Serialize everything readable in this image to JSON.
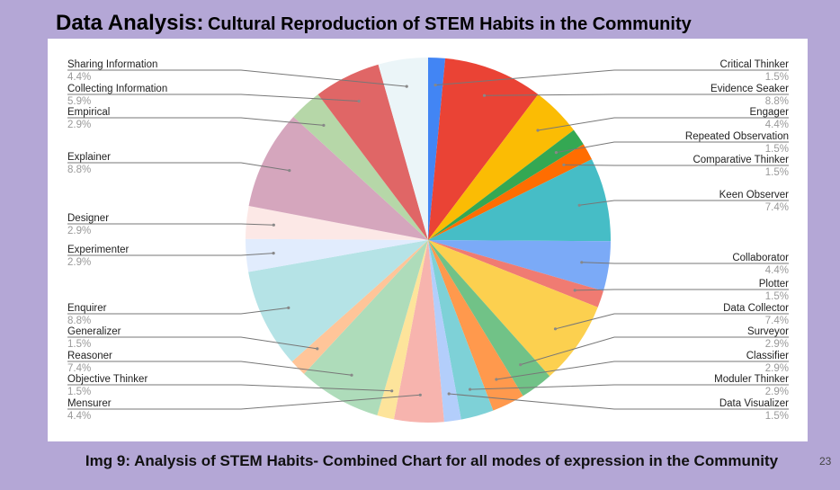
{
  "slide": {
    "title_prefix": "Data Analysis:",
    "title_rest": "Cultural Reproduction of STEM Habits in the Community",
    "caption": "Img 9: Analysis of STEM Habits- Combined Chart for all modes of expression in the Community",
    "page_number": "23"
  },
  "chart_data": {
    "type": "pie",
    "title": "",
    "slices": [
      {
        "label": "Critical Thinker",
        "value": 1.5,
        "display": "1.5%",
        "color": "#4285f4"
      },
      {
        "label": "Evidence Seaker",
        "value": 8.8,
        "display": "8.8%",
        "color": "#ea4335"
      },
      {
        "label": "Engager",
        "value": 4.4,
        "display": "4.4%",
        "color": "#fbbc04"
      },
      {
        "label": "Repeated Observation",
        "value": 1.5,
        "display": "1.5%",
        "color": "#34a853"
      },
      {
        "label": "Comparative Thinker",
        "value": 1.5,
        "display": "1.5%",
        "color": "#ff6d01"
      },
      {
        "label": "Keen Observer",
        "value": 7.4,
        "display": "7.4%",
        "color": "#46bdc6"
      },
      {
        "label": "Collaborator",
        "value": 4.4,
        "display": "4.4%",
        "color": "#7baaf7"
      },
      {
        "label": "Plotter",
        "value": 1.5,
        "display": "1.5%",
        "color": "#f07b72"
      },
      {
        "label": "Data Collector",
        "value": 7.4,
        "display": "7.4%",
        "color": "#fcd04f"
      },
      {
        "label": "Surveyor",
        "value": 2.9,
        "display": "2.9%",
        "color": "#71c287"
      },
      {
        "label": "Classifier",
        "value": 2.9,
        "display": "2.9%",
        "color": "#ff994d"
      },
      {
        "label": "Moduler Thinker",
        "value": 2.9,
        "display": "2.9%",
        "color": "#7ed1d7"
      },
      {
        "label": "Data Visualizer",
        "value": 1.5,
        "display": "1.5%",
        "color": "#b3cefb"
      },
      {
        "label": "Mensurer",
        "value": 4.4,
        "display": "4.4%",
        "color": "#f7b4ae"
      },
      {
        "label": "Objective Thinker",
        "value": 1.5,
        "display": "1.5%",
        "color": "#fde49b"
      },
      {
        "label": "Reasoner",
        "value": 7.4,
        "display": "7.4%",
        "color": "#aedcba"
      },
      {
        "label": "Generalizer",
        "value": 1.5,
        "display": "1.5%",
        "color": "#ffc599"
      },
      {
        "label": "Enquirer",
        "value": 8.8,
        "display": "8.8%",
        "color": "#b5e3e6"
      },
      {
        "label": "Experimenter",
        "value": 2.9,
        "display": "2.9%",
        "color": "#e1ecfd"
      },
      {
        "label": "Designer",
        "value": 2.9,
        "display": "2.9%",
        "color": "#fce8e6"
      },
      {
        "label": "Explainer",
        "value": 8.8,
        "display": "8.8%",
        "color": "#d5a6bd"
      },
      {
        "label": "Empirical",
        "value": 2.9,
        "display": "2.9%",
        "color": "#b6d7a8"
      },
      {
        "label": "Collecting Information",
        "value": 5.9,
        "display": "5.9%",
        "color": "#e06666"
      },
      {
        "label": "Sharing Information",
        "value": 4.4,
        "display": "4.4%",
        "color": "#ebf5f8"
      }
    ]
  }
}
